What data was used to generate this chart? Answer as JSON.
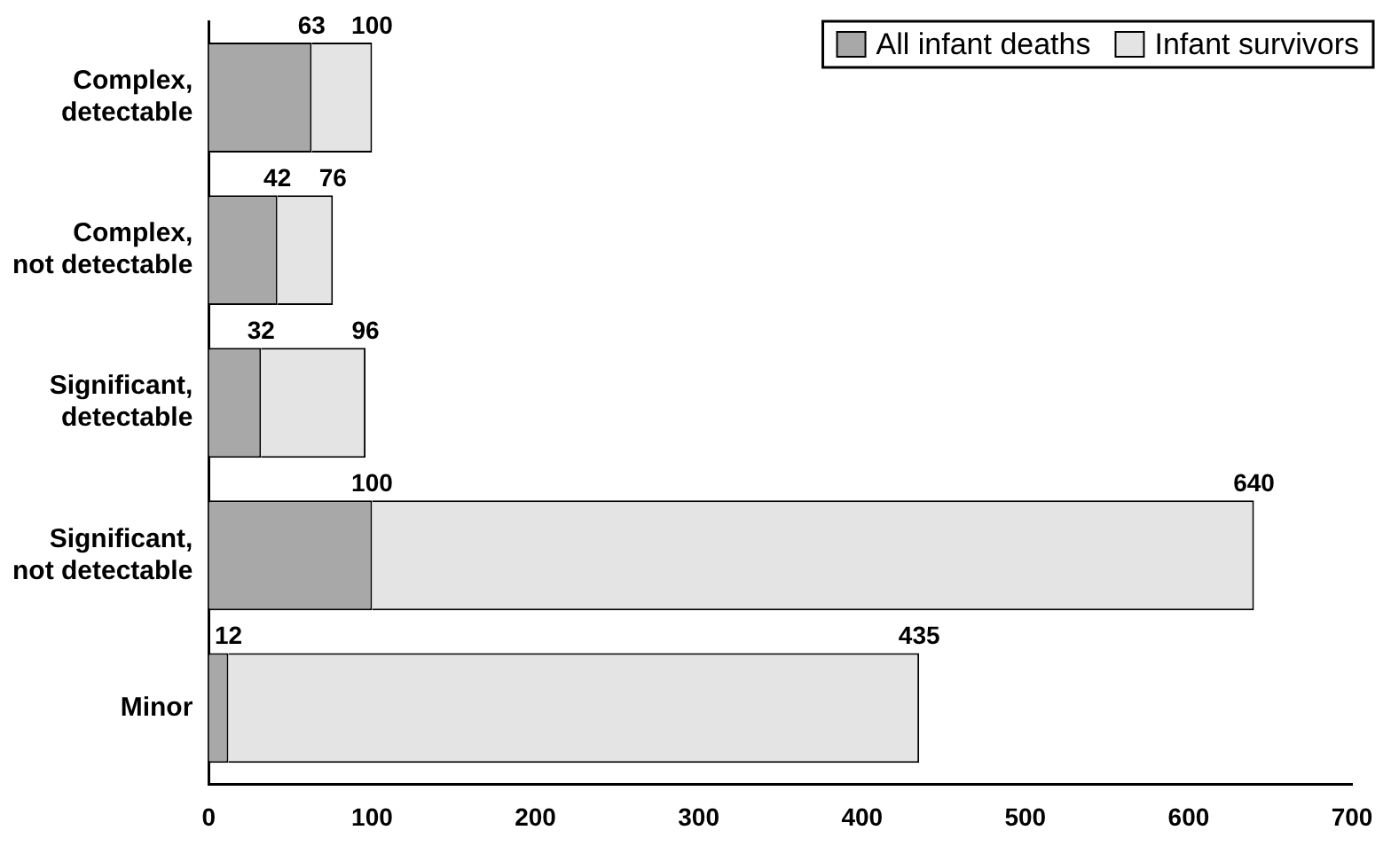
{
  "chart_data": {
    "type": "bar",
    "orientation": "horizontal",
    "stacked": true,
    "categories": [
      "Complex, detectable",
      "Complex, not detectable",
      "Significant, detectable",
      "Significant, not detectable",
      "Minor"
    ],
    "series": [
      {
        "name": "All infant deaths",
        "color": "#a8a8a8",
        "values": [
          63,
          42,
          32,
          100,
          12
        ],
        "value_labels": [
          "63",
          "42",
          "32",
          "100",
          "12"
        ]
      },
      {
        "name": "Infant survivors",
        "color": "#e4e4e4",
        "values": [
          37,
          34,
          64,
          540,
          423
        ]
      }
    ],
    "totals": [
      "100",
      "76",
      "96",
      "640",
      "435"
    ],
    "xlim": [
      0,
      700
    ],
    "xticks": [
      0,
      100,
      200,
      300,
      400,
      500,
      600,
      700
    ],
    "grid": false,
    "legend": "top right"
  }
}
